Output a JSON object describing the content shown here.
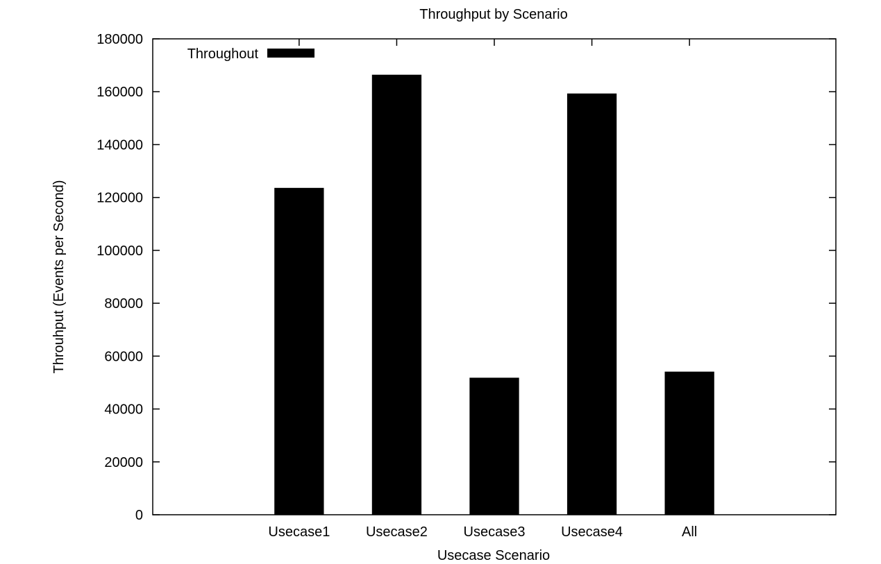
{
  "chart_data": {
    "type": "bar",
    "title": "Throughput by Scenario",
    "xlabel": "Usecase Scenario",
    "ylabel": "Throuhput (Events per Second)",
    "categories": [
      "Usecase1",
      "Usecase2",
      "Usecase3",
      "Usecase4",
      "All"
    ],
    "series": [
      {
        "name": "Throughout",
        "values": [
          123500,
          166300,
          51700,
          159200,
          54000
        ]
      }
    ],
    "ylim": [
      0,
      180000
    ],
    "yticks": [
      0,
      20000,
      40000,
      60000,
      80000,
      100000,
      120000,
      140000,
      160000,
      180000
    ],
    "grid": false,
    "legend_position": "top-left",
    "bar_color": "#000000"
  }
}
